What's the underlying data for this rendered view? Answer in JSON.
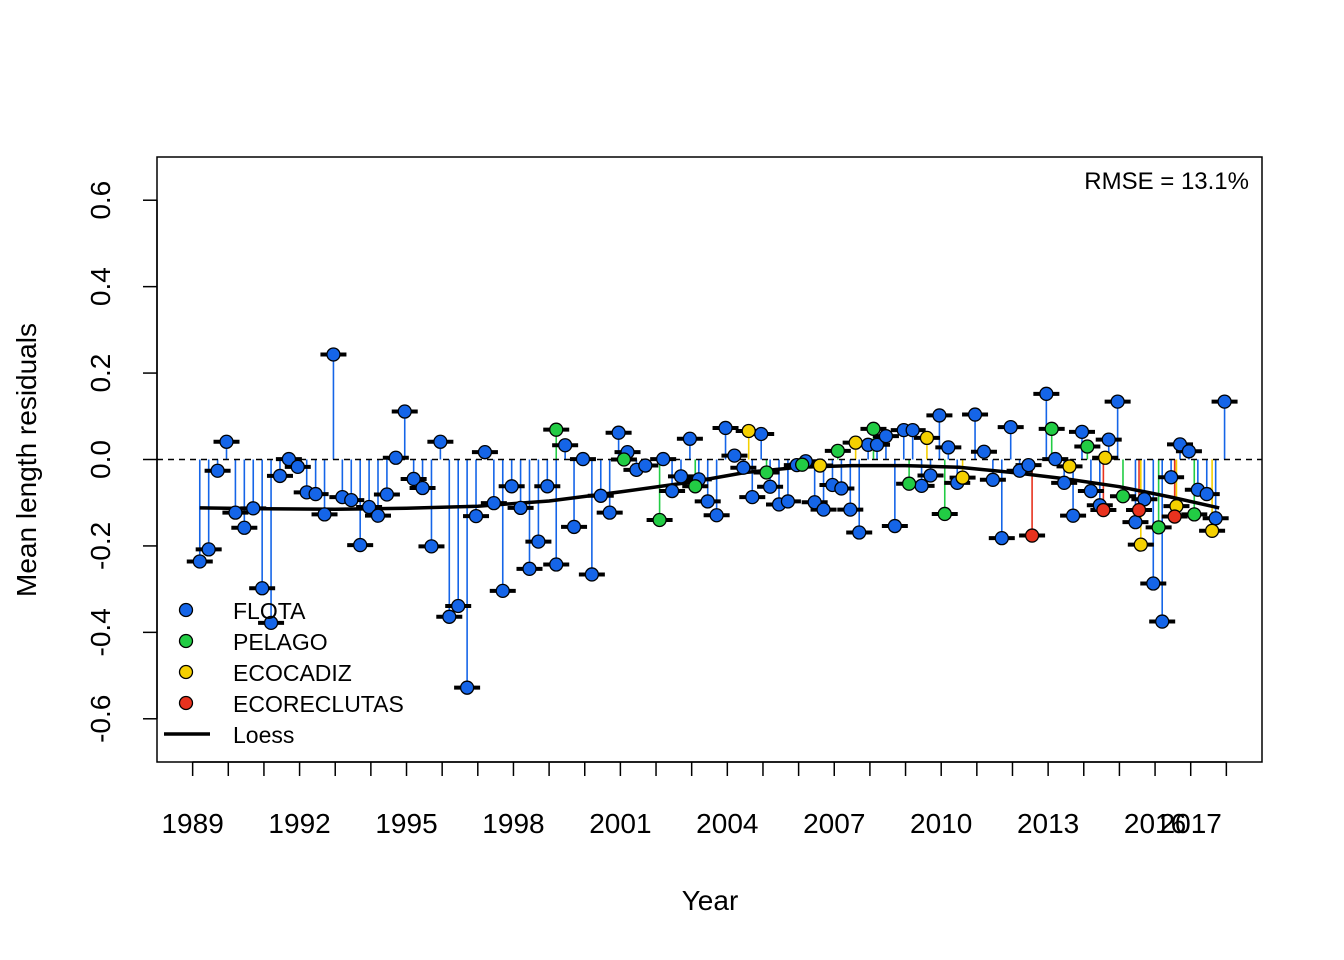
{
  "chart_data": {
    "type": "scatter",
    "xlabel": "Year",
    "ylabel": "Mean length residuals",
    "xlim": [
      1988,
      2019
    ],
    "ylim": [
      -0.7,
      0.7
    ],
    "x_ticks": [
      1989,
      1992,
      1995,
      1998,
      2001,
      2004,
      2007,
      2010,
      2013,
      2016,
      2017
    ],
    "x_tick_labels": [
      "1989",
      "1992",
      "1995",
      "1998",
      "2001",
      "2004",
      "2007",
      "2010",
      "2013",
      "2016",
      "2017"
    ],
    "y_ticks": [
      -0.6,
      -0.4,
      -0.2,
      0.0,
      0.2,
      0.4,
      0.6
    ],
    "y_tick_labels": [
      "-0.6",
      "-0.4",
      "-0.2",
      "0.0",
      "0.2",
      "0.4",
      "0.6"
    ],
    "annotation": "RMSE = 13.1%",
    "reference_line_y": 0,
    "legend": {
      "position": "bottom-left",
      "entries": [
        {
          "label": "FLOTA",
          "color": "#1565e8",
          "kind": "point"
        },
        {
          "label": "PELAGO",
          "color": "#22cc44",
          "kind": "point"
        },
        {
          "label": "ECOCADIZ",
          "color": "#f5d000",
          "kind": "point"
        },
        {
          "label": "ECORECLUTAS",
          "color": "#e8321e",
          "kind": "point"
        },
        {
          "label": "Loess",
          "color": "#000000",
          "kind": "line"
        }
      ]
    },
    "series": [
      {
        "name": "FLOTA",
        "color": "#1565e8",
        "points": [
          {
            "x": 1989.2,
            "y": -0.236
          },
          {
            "x": 1989.45,
            "y": -0.208
          },
          {
            "x": 1989.7,
            "y": -0.026
          },
          {
            "x": 1989.95,
            "y": 0.041
          },
          {
            "x": 1990.2,
            "y": -0.123
          },
          {
            "x": 1990.45,
            "y": -0.158
          },
          {
            "x": 1990.7,
            "y": -0.113
          },
          {
            "x": 1990.95,
            "y": -0.298
          },
          {
            "x": 1991.2,
            "y": -0.378
          },
          {
            "x": 1991.45,
            "y": -0.038
          },
          {
            "x": 1991.7,
            "y": 0.001
          },
          {
            "x": 1991.95,
            "y": -0.017
          },
          {
            "x": 1992.2,
            "y": -0.076
          },
          {
            "x": 1992.45,
            "y": -0.08
          },
          {
            "x": 1992.7,
            "y": -0.127
          },
          {
            "x": 1992.95,
            "y": 0.243
          },
          {
            "x": 1993.2,
            "y": -0.087
          },
          {
            "x": 1993.45,
            "y": -0.094
          },
          {
            "x": 1993.7,
            "y": -0.198
          },
          {
            "x": 1993.95,
            "y": -0.11
          },
          {
            "x": 1994.2,
            "y": -0.13
          },
          {
            "x": 1994.45,
            "y": -0.081
          },
          {
            "x": 1994.7,
            "y": 0.004
          },
          {
            "x": 1994.95,
            "y": 0.111
          },
          {
            "x": 1995.2,
            "y": -0.045
          },
          {
            "x": 1995.45,
            "y": -0.066
          },
          {
            "x": 1995.7,
            "y": -0.201
          },
          {
            "x": 1995.95,
            "y": 0.041
          },
          {
            "x": 1996.2,
            "y": -0.364
          },
          {
            "x": 1996.45,
            "y": -0.339
          },
          {
            "x": 1996.7,
            "y": -0.528
          },
          {
            "x": 1996.95,
            "y": -0.131
          },
          {
            "x": 1997.2,
            "y": 0.017
          },
          {
            "x": 1997.45,
            "y": -0.101
          },
          {
            "x": 1997.7,
            "y": -0.304
          },
          {
            "x": 1997.95,
            "y": -0.062
          },
          {
            "x": 1998.2,
            "y": -0.112
          },
          {
            "x": 1998.45,
            "y": -0.253
          },
          {
            "x": 1998.7,
            "y": -0.19
          },
          {
            "x": 1998.95,
            "y": -0.062
          },
          {
            "x": 1999.2,
            "y": -0.243
          },
          {
            "x": 1999.45,
            "y": 0.033
          },
          {
            "x": 1999.7,
            "y": -0.156
          },
          {
            "x": 1999.95,
            "y": 0.001
          },
          {
            "x": 2000.2,
            "y": -0.266
          },
          {
            "x": 2000.45,
            "y": -0.084
          },
          {
            "x": 2000.7,
            "y": -0.123
          },
          {
            "x": 2000.95,
            "y": 0.062
          },
          {
            "x": 2001.2,
            "y": 0.017
          },
          {
            "x": 2001.45,
            "y": -0.024
          },
          {
            "x": 2001.7,
            "y": -0.014
          },
          {
            "x": 2002.2,
            "y": 0.001
          },
          {
            "x": 2002.45,
            "y": -0.073
          },
          {
            "x": 2002.7,
            "y": -0.039
          },
          {
            "x": 2002.95,
            "y": 0.048
          },
          {
            "x": 2003.2,
            "y": -0.046
          },
          {
            "x": 2003.45,
            "y": -0.097
          },
          {
            "x": 2003.7,
            "y": -0.129
          },
          {
            "x": 2003.95,
            "y": 0.073
          },
          {
            "x": 2004.2,
            "y": 0.009
          },
          {
            "x": 2004.45,
            "y": -0.019
          },
          {
            "x": 2004.7,
            "y": -0.087
          },
          {
            "x": 2004.95,
            "y": 0.059
          },
          {
            "x": 2005.2,
            "y": -0.063
          },
          {
            "x": 2005.45,
            "y": -0.104
          },
          {
            "x": 2005.7,
            "y": -0.097
          },
          {
            "x": 2005.95,
            "y": -0.013
          },
          {
            "x": 2006.2,
            "y": -0.004
          },
          {
            "x": 2006.45,
            "y": -0.099
          },
          {
            "x": 2006.7,
            "y": -0.116
          },
          {
            "x": 2006.95,
            "y": -0.059
          },
          {
            "x": 2007.2,
            "y": -0.067
          },
          {
            "x": 2007.45,
            "y": -0.116
          },
          {
            "x": 2007.7,
            "y": -0.169
          },
          {
            "x": 2007.95,
            "y": 0.034
          },
          {
            "x": 2008.2,
            "y": 0.034
          },
          {
            "x": 2008.45,
            "y": 0.054
          },
          {
            "x": 2008.7,
            "y": -0.154
          },
          {
            "x": 2008.95,
            "y": 0.068
          },
          {
            "x": 2009.2,
            "y": 0.068
          },
          {
            "x": 2009.45,
            "y": -0.061
          },
          {
            "x": 2009.7,
            "y": -0.037
          },
          {
            "x": 2009.95,
            "y": 0.102
          },
          {
            "x": 2010.2,
            "y": 0.028
          },
          {
            "x": 2010.45,
            "y": -0.054
          },
          {
            "x": 2010.95,
            "y": 0.104
          },
          {
            "x": 2011.2,
            "y": 0.018
          },
          {
            "x": 2011.45,
            "y": -0.047
          },
          {
            "x": 2011.7,
            "y": -0.182
          },
          {
            "x": 2011.95,
            "y": 0.075
          },
          {
            "x": 2012.2,
            "y": -0.026
          },
          {
            "x": 2012.45,
            "y": -0.013
          },
          {
            "x": 2012.95,
            "y": 0.152
          },
          {
            "x": 2013.2,
            "y": 0.001
          },
          {
            "x": 2013.45,
            "y": -0.054
          },
          {
            "x": 2013.7,
            "y": -0.13
          },
          {
            "x": 2013.95,
            "y": 0.064
          },
          {
            "x": 2014.2,
            "y": -0.073
          },
          {
            "x": 2014.45,
            "y": -0.106
          },
          {
            "x": 2014.7,
            "y": 0.046
          },
          {
            "x": 2014.95,
            "y": 0.134
          },
          {
            "x": 2015.45,
            "y": -0.145
          },
          {
            "x": 2015.7,
            "y": -0.092
          },
          {
            "x": 2015.95,
            "y": -0.287
          },
          {
            "x": 2016.2,
            "y": -0.375
          },
          {
            "x": 2016.45,
            "y": -0.041
          },
          {
            "x": 2016.7,
            "y": 0.035
          },
          {
            "x": 2016.95,
            "y": 0.019
          },
          {
            "x": 2017.2,
            "y": -0.07
          },
          {
            "x": 2017.45,
            "y": -0.08
          },
          {
            "x": 2017.7,
            "y": -0.136
          },
          {
            "x": 2017.95,
            "y": 0.134
          }
        ]
      },
      {
        "name": "PELAGO",
        "color": "#22cc44",
        "points": [
          {
            "x": 1999.2,
            "y": 0.069
          },
          {
            "x": 2001.1,
            "y": 0.0
          },
          {
            "x": 2002.1,
            "y": -0.14
          },
          {
            "x": 2003.1,
            "y": -0.062
          },
          {
            "x": 2005.1,
            "y": -0.03
          },
          {
            "x": 2006.1,
            "y": -0.012
          },
          {
            "x": 2007.1,
            "y": 0.02
          },
          {
            "x": 2008.1,
            "y": 0.071
          },
          {
            "x": 2009.1,
            "y": -0.056
          },
          {
            "x": 2010.1,
            "y": -0.126
          },
          {
            "x": 2013.1,
            "y": 0.071
          },
          {
            "x": 2014.1,
            "y": 0.03
          },
          {
            "x": 2015.1,
            "y": -0.085
          },
          {
            "x": 2016.1,
            "y": -0.157
          },
          {
            "x": 2017.1,
            "y": -0.127
          }
        ]
      },
      {
        "name": "ECOCADIZ",
        "color": "#f5d000",
        "points": [
          {
            "x": 2004.6,
            "y": 0.066
          },
          {
            "x": 2006.6,
            "y": -0.014
          },
          {
            "x": 2007.6,
            "y": 0.039
          },
          {
            "x": 2009.6,
            "y": 0.05
          },
          {
            "x": 2010.6,
            "y": -0.042
          },
          {
            "x": 2013.6,
            "y": -0.016
          },
          {
            "x": 2014.6,
            "y": 0.004
          },
          {
            "x": 2015.6,
            "y": -0.197
          },
          {
            "x": 2016.6,
            "y": -0.108
          },
          {
            "x": 2017.6,
            "y": -0.165
          }
        ]
      },
      {
        "name": "ECORECLUTAS",
        "color": "#e8321e",
        "points": [
          {
            "x": 2012.55,
            "y": -0.176
          },
          {
            "x": 2014.55,
            "y": -0.117
          },
          {
            "x": 2015.55,
            "y": -0.117
          },
          {
            "x": 2016.55,
            "y": -0.132
          }
        ]
      }
    ],
    "loess": {
      "x": [
        1989.2,
        1991.0,
        1993.0,
        1995.0,
        1997.0,
        1999.0,
        2001.0,
        2003.0,
        2004.5,
        2006.0,
        2007.5,
        2009.0,
        2010.5,
        2012.0,
        2013.5,
        2015.0,
        2016.5,
        2017.8
      ],
      "y": [
        -0.112,
        -0.114,
        -0.115,
        -0.113,
        -0.108,
        -0.096,
        -0.075,
        -0.052,
        -0.03,
        -0.018,
        -0.014,
        -0.014,
        -0.018,
        -0.03,
        -0.045,
        -0.063,
        -0.088,
        -0.112
      ]
    }
  }
}
